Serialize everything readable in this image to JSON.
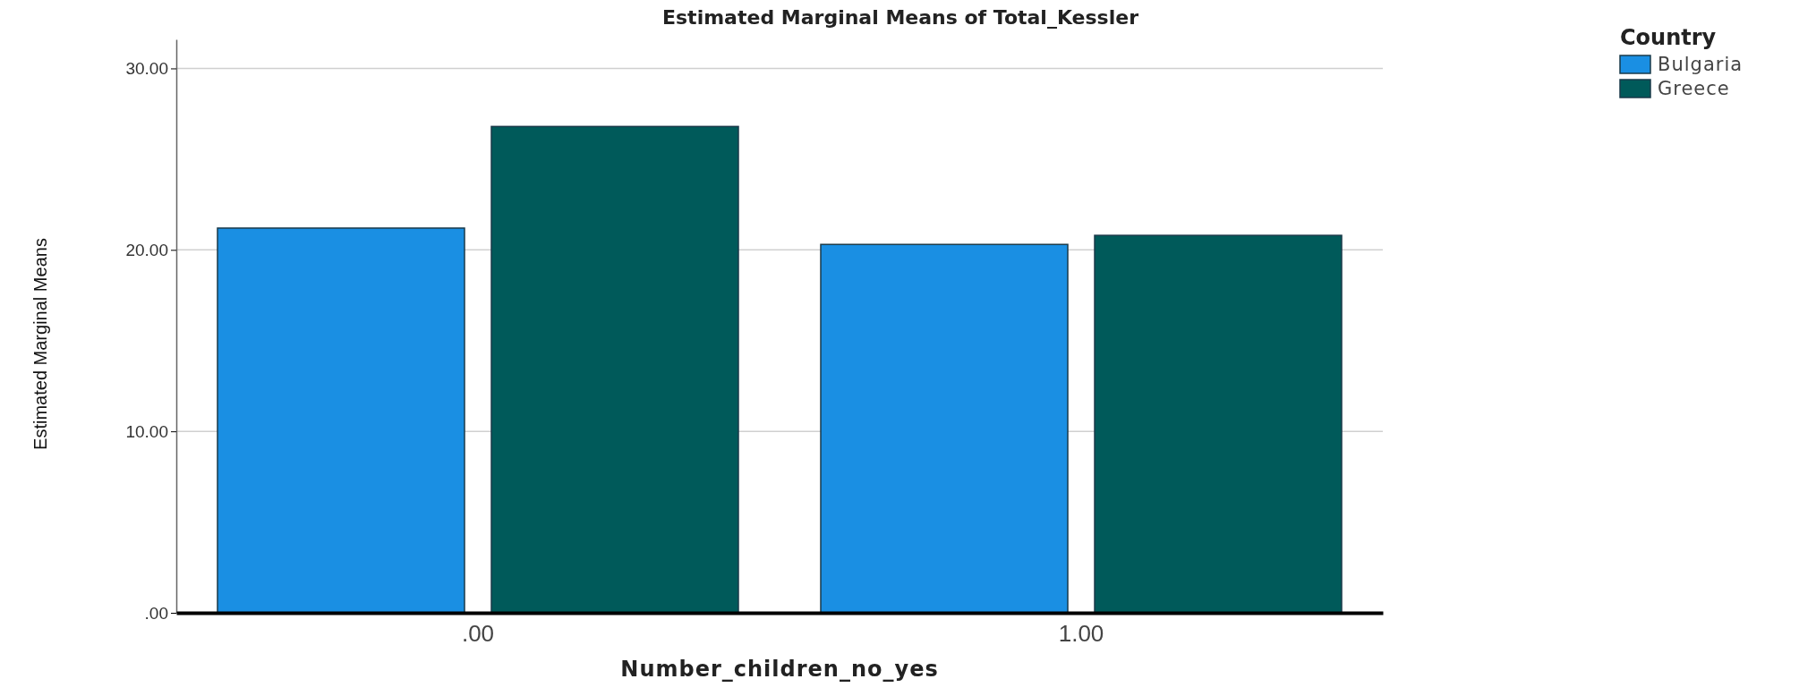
{
  "chart_data": {
    "type": "bar",
    "title": "Estimated Marginal Means of Total_Kessler",
    "xlabel": "Number_children_no_yes",
    "ylabel": "Estimated Marginal Means",
    "legend_title": "Country",
    "categories": [
      ".00",
      "1.00"
    ],
    "series": [
      {
        "name": "Bulgaria",
        "color": "#1a8fe3",
        "values": [
          21.2,
          20.3
        ]
      },
      {
        "name": "Greece",
        "color": "#005a5a",
        "values": [
          26.8,
          20.8
        ]
      }
    ],
    "ylim": [
      0,
      31.6
    ],
    "yticks": [
      {
        "value": 0,
        "label": ".00"
      },
      {
        "value": 10,
        "label": "10.00"
      },
      {
        "value": 20,
        "label": "20.00"
      },
      {
        "value": 30,
        "label": "30.00"
      }
    ],
    "grid": "y",
    "legend": "top right"
  }
}
